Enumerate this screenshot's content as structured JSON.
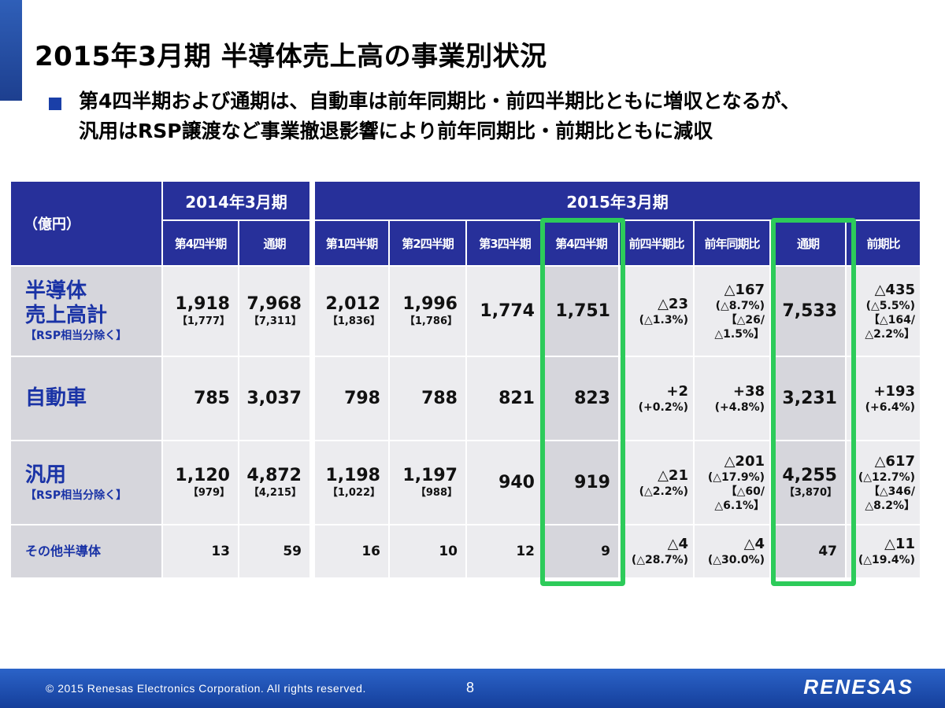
{
  "title": "2015年3月期 半導体売上高の事業別状況",
  "bullet": {
    "line1": "第4四半期および通期は、自動車は前年同期比・前四半期比ともに増収となるが、",
    "line2": "汎用はRSP譲渡など事業撤退影響により前年同期比・前期比ともに減収"
  },
  "table": {
    "unit_label": "（億円）",
    "fy2014_label": "2014年3月期",
    "fy2015_label": "2015年3月期",
    "columns": [
      "第4四半期",
      "通期",
      "第1四半期",
      "第2四半期",
      "第3四半期",
      "第4四半期",
      "前四半期比",
      "前年同期比",
      "通期",
      "前期比"
    ],
    "rows": {
      "semi": {
        "label_line1": "半導体",
        "label_line2": "売上高計",
        "label_sub": "【RSP相当分除く】",
        "q4_2014": "1,918",
        "q4_2014_b": "【1,777】",
        "fy_2014": "7,968",
        "fy_2014_b": "【7,311】",
        "q1": "2,012",
        "q1_b": "【1,836】",
        "q2": "1,996",
        "q2_b": "【1,786】",
        "q3": "1,774",
        "q4": "1,751",
        "qoq": "△23",
        "qoq_p": "(△1.3%)",
        "yoy": "△167",
        "yoy_p": "(△8.7%)",
        "yoy_b1": "【△26/",
        "yoy_b2": "△1.5%】",
        "fy": "7,533",
        "fy_chg": "△435",
        "fy_chg_p": "(△5.5%)",
        "fy_chg_b1": "【△164/",
        "fy_chg_b2": "△2.2%】"
      },
      "auto": {
        "label": "自動車",
        "q4_2014": "785",
        "fy_2014": "3,037",
        "q1": "798",
        "q2": "788",
        "q3": "821",
        "q4": "823",
        "qoq": "+2",
        "qoq_p": "(+0.2%)",
        "yoy": "+38",
        "yoy_p": "(+4.8%)",
        "fy": "3,231",
        "fy_chg": "+193",
        "fy_chg_p": "(+6.4%)"
      },
      "general": {
        "label": "汎用",
        "label_sub": "【RSP相当分除く】",
        "q4_2014": "1,120",
        "q4_2014_b": "【979】",
        "fy_2014": "4,872",
        "fy_2014_b": "【4,215】",
        "q1": "1,198",
        "q1_b": "【1,022】",
        "q2": "1,197",
        "q2_b": "【988】",
        "q3": "940",
        "q4": "919",
        "qoq": "△21",
        "qoq_p": "(△2.2%)",
        "yoy": "△201",
        "yoy_p": "(△17.9%)",
        "yoy_b1": "【△60/",
        "yoy_b2": "△6.1%】",
        "fy": "4,255",
        "fy_b": "【3,870】",
        "fy_chg": "△617",
        "fy_chg_p": "(△12.7%)",
        "fy_chg_b1": "【△346/",
        "fy_chg_b2": "△8.2%】"
      },
      "other": {
        "label": "その他半導体",
        "q4_2014": "13",
        "fy_2014": "59",
        "q1": "16",
        "q2": "10",
        "q3": "12",
        "q4": "9",
        "qoq": "△4",
        "qoq_p": "(△28.7%)",
        "yoy": "△4",
        "yoy_p": "(△30.0%)",
        "fy": "47",
        "fy_chg": "△11",
        "fy_chg_p": "(△19.4%)"
      }
    }
  },
  "colors": {
    "header": "#27309a",
    "label_text": "#1a33a6",
    "highlight": "#2dcb5a",
    "footer": "#1d4aa8"
  },
  "footer": {
    "copyright": "© 2015  Renesas Electronics Corporation. All rights reserved.",
    "page": "8",
    "logo": "RENESAS"
  }
}
